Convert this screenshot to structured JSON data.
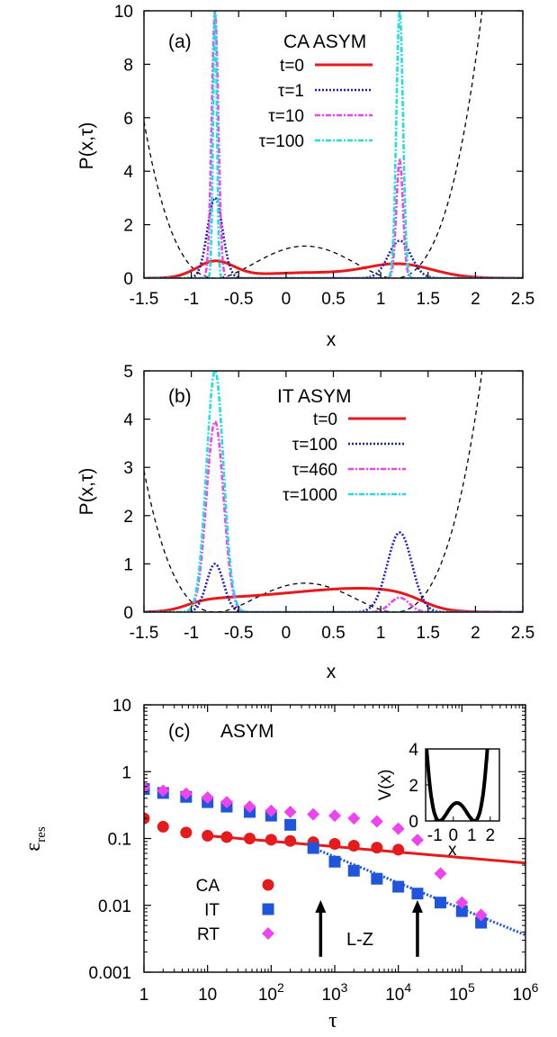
{
  "chart_data": [
    {
      "type": "line",
      "panel_label": "(a)",
      "legend_title": "CA ASYM",
      "xlabel": "x",
      "ylabel": "P(x,τ)",
      "xlim": [
        -1.5,
        2.5
      ],
      "ylim": [
        0,
        10
      ],
      "xticks": [
        "-1.5",
        "-1",
        "-0.5",
        "0",
        "0.5",
        "1",
        "1.5",
        "2",
        "2.5"
      ],
      "yticks": [
        "0",
        "2",
        "4",
        "6",
        "8",
        "10"
      ],
      "legend_position": "top-right",
      "grid": false,
      "potential_curve": {
        "style": "dashed",
        "color": "#000000",
        "peak_y": 1.2
      },
      "series": [
        {
          "name": "t=0",
          "color": "#e41a1c",
          "style": "solid",
          "peaks": [
            {
              "x": -0.75,
              "y": 0.6
            },
            {
              "x": 1.2,
              "y": 0.5
            }
          ],
          "mid_y": 0.2
        },
        {
          "name": "τ=1",
          "color": "#1f1fb4",
          "style": "dotted",
          "peaks": [
            {
              "x": -0.75,
              "y": 3.0
            },
            {
              "x": 1.2,
              "y": 1.4
            }
          ]
        },
        {
          "name": "τ=10",
          "color": "#ee44ee",
          "style": "dashdot",
          "peaks": [
            {
              "x": -0.75,
              "y": 10
            },
            {
              "x": 1.2,
              "y": 4.4
            }
          ]
        },
        {
          "name": "τ=100",
          "color": "#22dddd",
          "style": "dashdot",
          "peaks": [
            {
              "x": -0.75,
              "y": 10
            },
            {
              "x": 1.2,
              "y": 10
            }
          ]
        }
      ]
    },
    {
      "type": "line",
      "panel_label": "(b)",
      "legend_title": "IT ASYM",
      "xlabel": "x",
      "ylabel": "P(x,τ)",
      "xlim": [
        -1.5,
        2.5
      ],
      "ylim": [
        0,
        5
      ],
      "xticks": [
        "-1.5",
        "-1",
        "-0.5",
        "0",
        "0.5",
        "1",
        "1.5",
        "2",
        "2.5"
      ],
      "yticks": [
        "0",
        "1",
        "2",
        "3",
        "4",
        "5"
      ],
      "legend_position": "top-right",
      "grid": false,
      "potential_curve": {
        "style": "dashed",
        "color": "#000000",
        "peak_y": 0.6
      },
      "series": [
        {
          "name": "t=0",
          "color": "#e41a1c",
          "style": "solid",
          "peaks": [
            {
              "x": 0.85,
              "y": 0.5
            }
          ]
        },
        {
          "name": "τ=100",
          "color": "#1f1fb4",
          "style": "dotted",
          "peaks": [
            {
              "x": -0.75,
              "y": 1.0
            },
            {
              "x": 1.2,
              "y": 1.65
            }
          ]
        },
        {
          "name": "τ=460",
          "color": "#ee44ee",
          "style": "dashdot",
          "peaks": [
            {
              "x": -0.75,
              "y": 3.95
            },
            {
              "x": 1.2,
              "y": 0.3
            }
          ]
        },
        {
          "name": "τ=1000",
          "color": "#22dddd",
          "style": "dashdot",
          "peaks": [
            {
              "x": -0.75,
              "y": 5.0
            },
            {
              "x": 1.2,
              "y": 0.0
            }
          ]
        }
      ]
    },
    {
      "type": "scatter",
      "panel_label": "(c)",
      "title": "ASYM",
      "xlabel": "τ",
      "ylabel": "ε",
      "ylabel_sub": "res",
      "xscale": "log",
      "yscale": "log",
      "xlim": [
        1,
        1000000
      ],
      "ylim": [
        0.001,
        10
      ],
      "xticks": [
        {
          "v": 1,
          "base": "1",
          "exp": ""
        },
        {
          "v": 10,
          "base": "10",
          "exp": ""
        },
        {
          "v": 100,
          "base": "10",
          "exp": "2"
        },
        {
          "v": 1000,
          "base": "10",
          "exp": "3"
        },
        {
          "v": 10000,
          "base": "10",
          "exp": "4"
        },
        {
          "v": 100000,
          "base": "10",
          "exp": "5"
        },
        {
          "v": 1000000,
          "base": "10",
          "exp": "6"
        }
      ],
      "yticks": [
        {
          "v": 0.001,
          "label": "0.001"
        },
        {
          "v": 0.01,
          "label": "0.01"
        },
        {
          "v": 0.1,
          "label": "0.1"
        },
        {
          "v": 1,
          "label": "1"
        },
        {
          "v": 10,
          "label": "10"
        }
      ],
      "legend_position": "bottom-left",
      "series": [
        {
          "name": "CA",
          "color": "#e41a1c",
          "marker": "circle",
          "x": [
            1,
            2,
            4.6,
            10,
            20,
            46,
            100,
            200,
            460,
            1000,
            2000,
            4600,
            10000
          ],
          "y": [
            0.2,
            0.15,
            0.123,
            0.11,
            0.105,
            0.1,
            0.096,
            0.092,
            0.088,
            0.083,
            0.078,
            0.073,
            0.068
          ]
        },
        {
          "name": "IT",
          "color": "#1f55dd",
          "marker": "square",
          "x": [
            1,
            2,
            4.6,
            10,
            20,
            46,
            100,
            200,
            460,
            1000,
            2000,
            4600,
            10000,
            20000,
            46000,
            100000,
            200000
          ],
          "y": [
            0.55,
            0.48,
            0.42,
            0.35,
            0.3,
            0.25,
            0.22,
            0.16,
            0.072,
            0.045,
            0.033,
            0.025,
            0.019,
            0.015,
            0.011,
            0.0082,
            0.0055
          ]
        },
        {
          "name": "RT",
          "color": "#ee44ee",
          "marker": "diamond",
          "x": [
            1,
            2,
            4.6,
            10,
            20,
            46,
            100,
            200,
            460,
            1000,
            2000,
            4600,
            10000,
            20000,
            46000,
            100000,
            200000
          ],
          "y": [
            0.58,
            0.52,
            0.47,
            0.41,
            0.35,
            0.3,
            0.26,
            0.25,
            0.23,
            0.22,
            0.2,
            0.18,
            0.14,
            0.095,
            0.03,
            0.011,
            0.0072
          ]
        }
      ],
      "fit_lines": [
        {
          "color": "#e41a1c",
          "style": "solid",
          "x": [
            10,
            1000000
          ],
          "y": [
            0.11,
            0.043
          ]
        },
        {
          "color": "#1f55dd",
          "style": "dotted",
          "x": [
            460,
            1000000
          ],
          "y": [
            0.072,
            0.0036
          ]
        }
      ],
      "annotations": {
        "text": "L-Z",
        "arrows_at_x": [
          600,
          20000
        ],
        "arrow_tip_y": 0.012,
        "arrow_base_y": 0.0017
      },
      "inset": {
        "xlabel": "x",
        "ylabel": "V(x)",
        "xlim": [
          -1.5,
          2.5
        ],
        "ylim": [
          0,
          4
        ],
        "xticks": [
          "-1",
          "0",
          "1",
          "2"
        ],
        "yticks": [
          "0",
          "2",
          "4"
        ]
      }
    }
  ]
}
